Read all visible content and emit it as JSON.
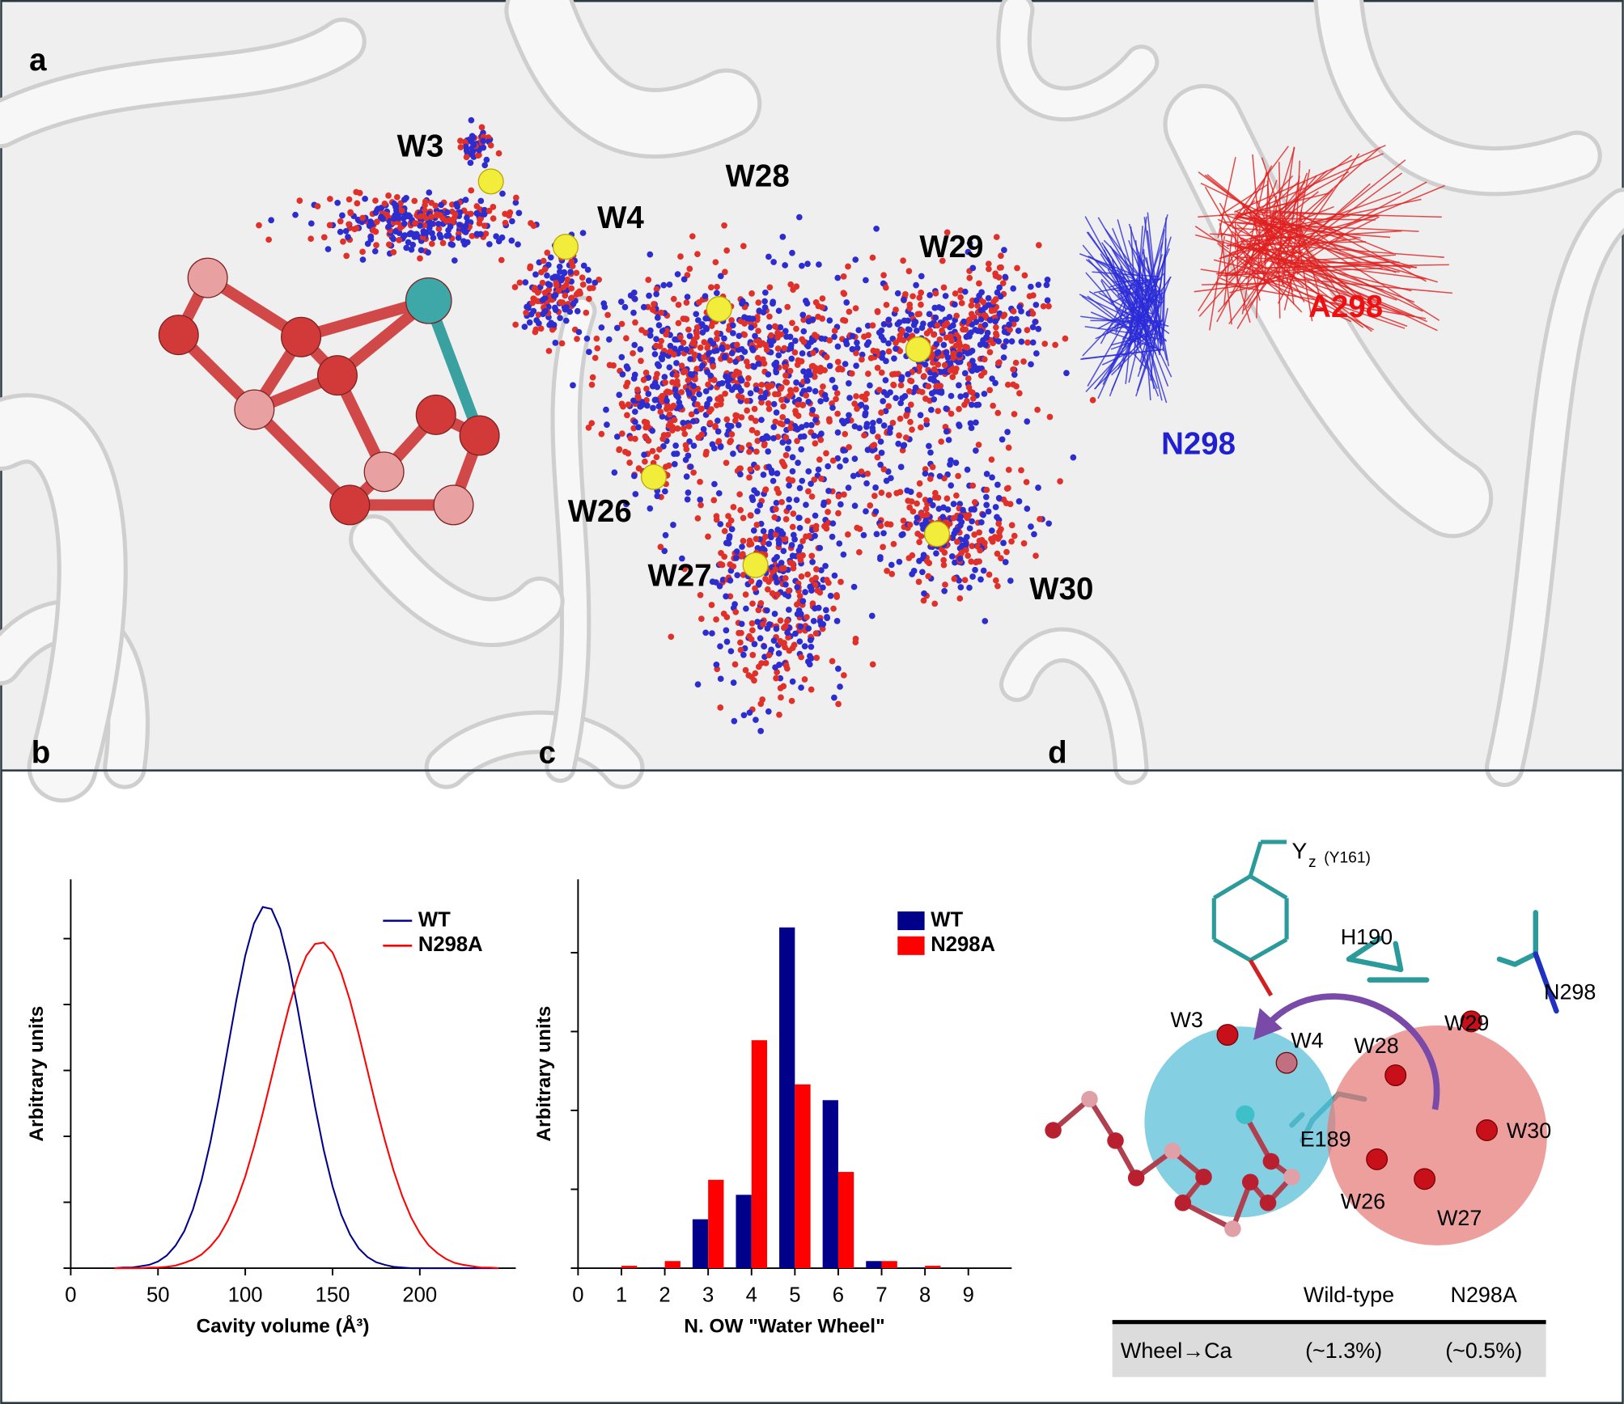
{
  "panel_a": {
    "label": "a",
    "waters": [
      "W3",
      "W4",
      "W28",
      "W29",
      "W26",
      "W27",
      "W30"
    ],
    "residues": [
      "A298",
      "N298"
    ]
  },
  "chart_data": [
    {
      "type": "line",
      "panel_label": "b",
      "xlabel": "Cavity volume (Å³)",
      "ylabel": "Arbitrary units",
      "x": [
        25,
        30,
        35,
        40,
        45,
        50,
        55,
        60,
        65,
        70,
        75,
        80,
        85,
        90,
        95,
        100,
        105,
        110,
        115,
        120,
        125,
        130,
        135,
        140,
        145,
        150,
        155,
        160,
        165,
        170,
        175,
        180,
        185,
        190,
        195,
        200,
        205,
        210,
        215,
        220,
        225,
        230,
        235,
        240,
        245
      ],
      "series": [
        {
          "name": "WT",
          "color": "#00008b",
          "values": [
            0,
            0.01,
            0.01,
            0.03,
            0.05,
            0.1,
            0.19,
            0.34,
            0.56,
            0.89,
            1.34,
            1.91,
            2.59,
            3.34,
            4.08,
            4.74,
            5.23,
            5.48,
            5.45,
            5.15,
            4.62,
            3.94,
            3.19,
            2.45,
            1.79,
            1.24,
            0.81,
            0.51,
            0.3,
            0.17,
            0.09,
            0.05,
            0.02,
            0.01,
            0,
            0,
            0,
            0,
            0,
            0,
            0,
            0,
            0,
            0,
            0
          ]
        },
        {
          "name": "N298A",
          "color": "#ff0000",
          "values": [
            0,
            0,
            0,
            0,
            0.01,
            0.01,
            0.02,
            0.04,
            0.08,
            0.13,
            0.21,
            0.33,
            0.49,
            0.72,
            1.02,
            1.39,
            1.84,
            2.35,
            2.89,
            3.44,
            3.96,
            4.41,
            4.74,
            4.92,
            4.94,
            4.79,
            4.48,
            4.06,
            3.55,
            3.0,
            2.45,
            1.94,
            1.48,
            1.09,
            0.77,
            0.53,
            0.35,
            0.23,
            0.14,
            0.08,
            0.05,
            0.03,
            0.01,
            0.01,
            0
          ]
        }
      ],
      "xlim": [
        0,
        255
      ],
      "xticks": [
        0,
        50,
        100,
        150,
        200
      ],
      "ylim": [
        0,
        5.9
      ],
      "yticks": [
        0,
        1,
        2,
        3,
        4,
        5
      ],
      "ytick_labels": false
    },
    {
      "type": "bar",
      "panel_label": "c",
      "xlabel": "N. OW \"Water Wheel\"",
      "ylabel": "Arbitrary units",
      "x": [
        1,
        2,
        3,
        4,
        5,
        6,
        7,
        8,
        9
      ],
      "series": [
        {
          "name": "WT",
          "color": "#00008b",
          "values": [
            0,
            0.01,
            0.62,
            0.93,
            4.32,
            2.13,
            0.09,
            0.01,
            0
          ]
        },
        {
          "name": "N298A",
          "color": "#ff0000",
          "values": [
            0.03,
            0.09,
            1.12,
            2.89,
            2.33,
            1.22,
            0.09,
            0.03,
            0
          ]
        }
      ],
      "xlim": [
        0,
        10
      ],
      "xticks": [
        0,
        1,
        2,
        3,
        4,
        5,
        6,
        7,
        8,
        9
      ],
      "ylim": [
        0,
        4.93
      ],
      "yticks": [
        0,
        1,
        2,
        3,
        4
      ],
      "ytick_labels": false
    }
  ],
  "panel_d": {
    "label": "d",
    "yz_main": "Y",
    "yz_sub": "z",
    "yz_note": "(Y161)",
    "labels": [
      "H190",
      "N298",
      "W3",
      "W4",
      "W28",
      "W29",
      "W30",
      "E189",
      "W26",
      "W27"
    ],
    "table": {
      "header": [
        "Wild-type",
        "N298A"
      ],
      "rows": [
        [
          "Wheel→Ca",
          "(~1.3%)",
          "(~0.5%)"
        ]
      ]
    }
  }
}
